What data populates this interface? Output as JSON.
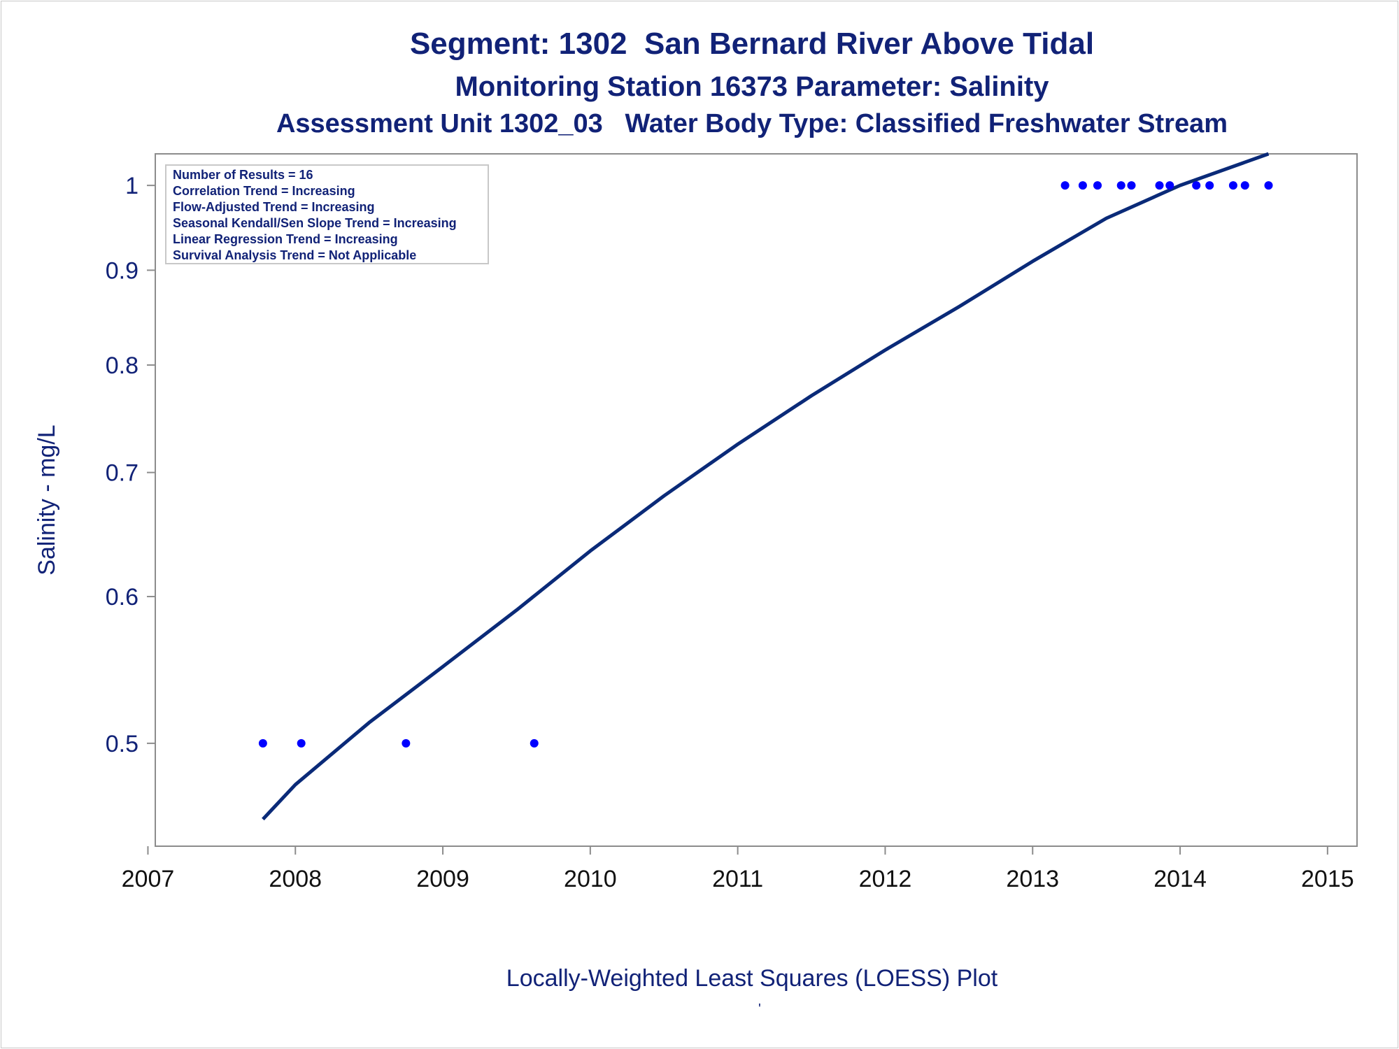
{
  "titles": {
    "line1": "Segment: 1302  San Bernard River Above Tidal",
    "line2": "Monitoring Station 16373 Parameter: Salinity",
    "line3": "Assessment Unit 1302_03   Water Body Type: Classified Freshwater Stream"
  },
  "footnote": "Locally-Weighted Least Squares (LOESS) Plot",
  "footnote_mark": "'",
  "colors": {
    "text": "#112277",
    "curve": "#0a2a78",
    "points": "#0000ff",
    "frame": "#8c8c8c"
  },
  "chart_data": {
    "type": "scatter",
    "title": "Segment: 1302  San Bernard River Above Tidal",
    "xlabel": "",
    "ylabel": "Salinity - mg/L",
    "y_scale": "log",
    "xlim": [
      2007.05,
      2015.2
    ],
    "ylim": [
      0.44,
      1.04
    ],
    "x_ticks": [
      2007,
      2008,
      2009,
      2010,
      2011,
      2012,
      2013,
      2014,
      2015
    ],
    "y_ticks": [
      0.5,
      0.6,
      0.7,
      0.8,
      0.9,
      1
    ],
    "y_tick_labels": [
      "0.5",
      "0.6",
      "0.7",
      "0.8",
      "0.9",
      "1"
    ],
    "grid": false,
    "legend": {
      "placement": "top-left",
      "lines": [
        "Number of Results = 16",
        "Correlation Trend = Increasing",
        "Flow-Adjusted Trend = Increasing",
        "Seasonal Kendall/Sen Slope Trend = Increasing",
        "Linear Regression Trend = Increasing",
        "Survival Analysis Trend = Not Applicable"
      ]
    },
    "series": [
      {
        "kind": "points",
        "x": [
          2007.78,
          2008.04,
          2008.75,
          2009.62,
          2013.22,
          2013.34,
          2013.44,
          2013.6,
          2013.67,
          2013.86,
          2013.93,
          2014.11,
          2014.2,
          2014.36,
          2014.44,
          2014.6
        ],
        "y": [
          0.5,
          0.5,
          0.5,
          0.5,
          1,
          1,
          1,
          1,
          1,
          1,
          1,
          1,
          1,
          1,
          1,
          1
        ]
      },
      {
        "kind": "loess-curve",
        "x": [
          2007.78,
          2008.0,
          2008.5,
          2009.0,
          2009.5,
          2010.0,
          2010.5,
          2011.0,
          2011.5,
          2012.0,
          2012.5,
          2013.0,
          2013.5,
          2014.0,
          2014.6
        ],
        "y": [
          0.455,
          0.475,
          0.513,
          0.55,
          0.59,
          0.635,
          0.68,
          0.725,
          0.77,
          0.815,
          0.86,
          0.91,
          0.96,
          1.0,
          1.04
        ]
      }
    ]
  }
}
